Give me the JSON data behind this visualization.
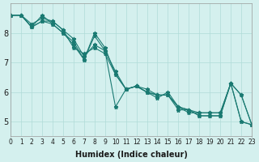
{
  "xlabel": "Humidex (Indice chaleur)",
  "ylabel": "",
  "background_color": "#d4f0ee",
  "grid_color": "#b0dbd8",
  "line_color": "#1a7a72",
  "xlim": [
    0,
    23
  ],
  "ylim": [
    4.5,
    9.0
  ],
  "yticks": [
    5,
    6,
    7,
    8
  ],
  "xticks": [
    0,
    1,
    2,
    3,
    4,
    5,
    6,
    7,
    8,
    9,
    10,
    11,
    12,
    13,
    14,
    15,
    16,
    17,
    18,
    19,
    20,
    21,
    22,
    23
  ],
  "series": [
    [
      8.6,
      8.6,
      8.3,
      8.5,
      8.4,
      8.1,
      7.8,
      7.2,
      7.6,
      7.4,
      6.7,
      6.1,
      6.2,
      6.1,
      5.9,
      5.9,
      5.5,
      5.4,
      5.3,
      5.3,
      5.3,
      6.3,
      5.0,
      4.9
    ],
    [
      8.6,
      8.6,
      8.2,
      8.6,
      8.3,
      8.0,
      7.7,
      7.1,
      7.9,
      7.4,
      5.5,
      6.1,
      6.2,
      6.0,
      5.9,
      5.9,
      5.5,
      5.3,
      5.3,
      5.3,
      5.3,
      6.3,
      5.0,
      4.9
    ],
    [
      8.6,
      8.6,
      8.2,
      8.4,
      8.4,
      8.1,
      7.5,
      7.3,
      7.5,
      7.3,
      6.6,
      6.1,
      6.2,
      6.0,
      5.8,
      6.0,
      5.5,
      5.4,
      5.2,
      5.2,
      5.2,
      6.3,
      5.9,
      4.9
    ],
    [
      8.6,
      8.6,
      8.2,
      8.4,
      8.3,
      8.0,
      7.6,
      7.1,
      8.0,
      7.5,
      6.6,
      6.1,
      6.2,
      6.0,
      5.9,
      5.9,
      5.4,
      5.4,
      5.2,
      5.2,
      5.2,
      6.3,
      5.9,
      4.9
    ]
  ]
}
